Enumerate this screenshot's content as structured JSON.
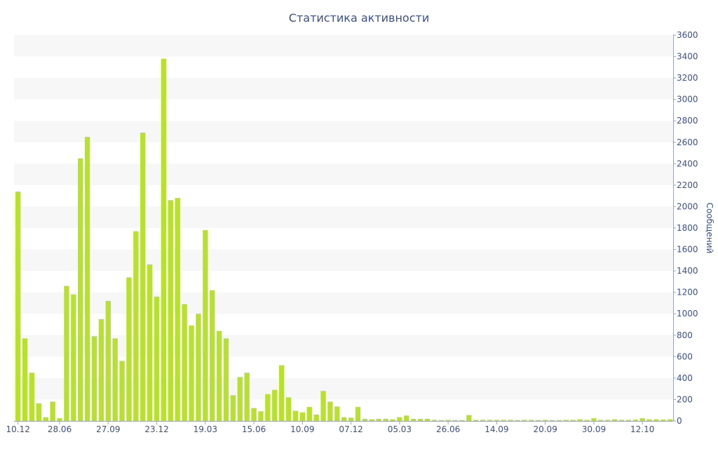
{
  "chart_data": {
    "type": "bar",
    "title": "Статистика активности",
    "ylabel": "Сообщений",
    "xlabel": "",
    "ylim": [
      0,
      3600
    ],
    "yticks": [
      0,
      200,
      400,
      600,
      800,
      1000,
      1200,
      1400,
      1600,
      1800,
      2000,
      2200,
      2400,
      2600,
      2800,
      3000,
      3200,
      3400,
      3600
    ],
    "x_tick_labels": [
      {
        "index": 0,
        "label": "10.12"
      },
      {
        "index": 6,
        "label": "28.06"
      },
      {
        "index": 13,
        "label": "27.09"
      },
      {
        "index": 20,
        "label": "23.12"
      },
      {
        "index": 27,
        "label": "19.03"
      },
      {
        "index": 34,
        "label": "15.06"
      },
      {
        "index": 41,
        "label": "10.09"
      },
      {
        "index": 48,
        "label": "07.12"
      },
      {
        "index": 55,
        "label": "05.03"
      },
      {
        "index": 62,
        "label": "26.06"
      },
      {
        "index": 69,
        "label": "14.09"
      },
      {
        "index": 76,
        "label": "20.09"
      },
      {
        "index": 83,
        "label": "30.09"
      },
      {
        "index": 90,
        "label": "12.10"
      }
    ],
    "values": [
      2140,
      770,
      450,
      165,
      35,
      180,
      25,
      1260,
      1180,
      2450,
      2650,
      790,
      950,
      1120,
      770,
      560,
      1340,
      1770,
      2690,
      1460,
      1160,
      3380,
      2060,
      2080,
      1090,
      890,
      1000,
      1780,
      1220,
      840,
      770,
      240,
      410,
      450,
      120,
      90,
      250,
      290,
      520,
      220,
      95,
      80,
      130,
      60,
      280,
      180,
      135,
      35,
      30,
      130,
      20,
      15,
      20,
      20,
      15,
      35,
      50,
      20,
      20,
      20,
      10,
      8,
      10,
      8,
      8,
      55,
      10,
      10,
      10,
      10,
      10,
      10,
      8,
      10,
      10,
      8,
      10,
      8,
      8,
      10,
      10,
      15,
      10,
      25,
      10,
      10,
      15,
      10,
      10,
      12,
      25,
      15,
      15,
      12,
      15
    ],
    "grid": "alternating-bands",
    "legend": "none",
    "bar_color": "#b8e02e",
    "text_color": "#3b4f8c"
  }
}
